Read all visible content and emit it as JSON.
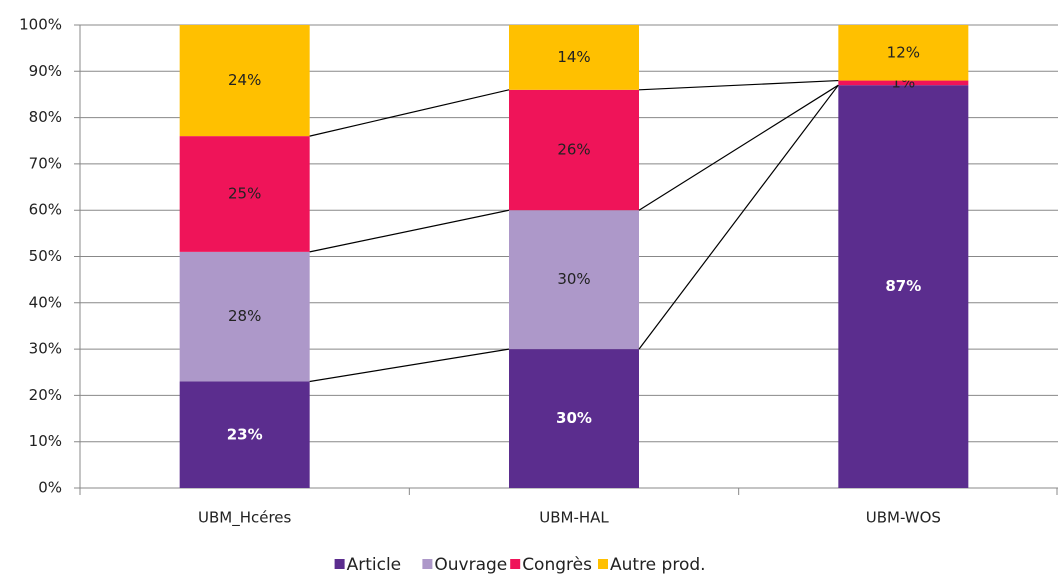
{
  "chart_data": {
    "type": "stacked_bar_100",
    "categories": [
      "UBM_Hcéres",
      "UBM-HAL",
      "UBM-WOS"
    ],
    "series": [
      {
        "name": "Article",
        "color": "#5b2d8e",
        "values": [
          23,
          30,
          87
        ],
        "value_labels": [
          "23%",
          "30%",
          "87%"
        ]
      },
      {
        "name": "Ouvrage",
        "color": "#ad98c9",
        "values": [
          28,
          30,
          0
        ],
        "value_labels": [
          "28%",
          "30%",
          null
        ]
      },
      {
        "name": "Congrès",
        "color": "#ef1459",
        "values": [
          25,
          26,
          1
        ],
        "value_labels": [
          "25%",
          "26%",
          "1%"
        ]
      },
      {
        "name": "Autre prod.",
        "color": "#ffc000",
        "values": [
          24,
          14,
          12
        ],
        "value_labels": [
          "24%",
          "14%",
          "12%"
        ]
      }
    ],
    "ylim": [
      0,
      100
    ],
    "yticks": [
      {
        "value": 0,
        "label": "0%"
      },
      {
        "value": 10,
        "label": "10%"
      },
      {
        "value": 20,
        "label": "20%"
      },
      {
        "value": 30,
        "label": "30%"
      },
      {
        "value": 40,
        "label": "40%"
      },
      {
        "value": 50,
        "label": "50%"
      },
      {
        "value": 60,
        "label": "60%"
      },
      {
        "value": 70,
        "label": "70%"
      },
      {
        "value": 80,
        "label": "80%"
      },
      {
        "value": 90,
        "label": "90%"
      },
      {
        "value": 100,
        "label": "100%"
      }
    ],
    "grid": true,
    "legend": "bottom"
  }
}
